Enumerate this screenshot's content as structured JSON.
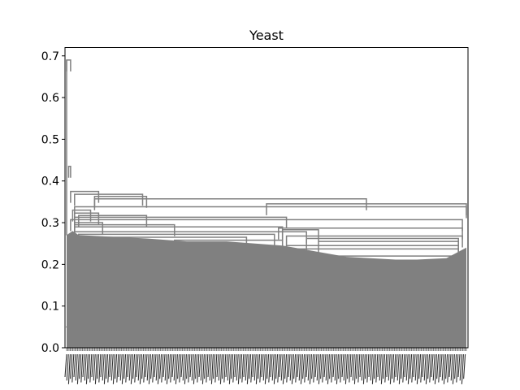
{
  "chart_data": {
    "type": "dendrogram",
    "title": "Yeast",
    "xlabel": "",
    "ylabel": "",
    "ylim": [
      0,
      0.72
    ],
    "yticks": [
      "0.0",
      "0.1",
      "0.2",
      "0.3",
      "0.4",
      "0.5",
      "0.6",
      "0.7"
    ],
    "leaf_labels_legible": false,
    "grid": false,
    "link_color": "#808080",
    "root_height": 0.69,
    "merges": [
      {
        "height": 0.69,
        "span": [
          0.0,
          0.01
        ]
      },
      {
        "height": 0.435,
        "span": [
          0.005,
          0.01
        ]
      },
      {
        "height": 0.375,
        "span": [
          0.01,
          0.08
        ]
      },
      {
        "height": 0.368,
        "span": [
          0.02,
          0.19
        ]
      },
      {
        "height": 0.363,
        "span": [
          0.07,
          0.2
        ]
      },
      {
        "height": 0.357,
        "span": [
          0.07,
          0.75
        ]
      },
      {
        "height": 0.345,
        "span": [
          0.5,
          1.0
        ]
      },
      {
        "height": 0.338,
        "span": [
          0.02,
          1.0
        ]
      },
      {
        "height": 0.33,
        "span": [
          0.015,
          0.06
        ]
      },
      {
        "height": 0.323,
        "span": [
          0.02,
          0.08
        ]
      },
      {
        "height": 0.317,
        "span": [
          0.03,
          0.2
        ]
      },
      {
        "height": 0.313,
        "span": [
          0.02,
          0.55
        ]
      },
      {
        "height": 0.307,
        "span": [
          0.01,
          0.99
        ]
      },
      {
        "height": 0.3,
        "span": [
          0.02,
          0.09
        ]
      },
      {
        "height": 0.295,
        "span": [
          0.02,
          0.27
        ]
      },
      {
        "height": 0.29,
        "span": [
          0.02,
          0.54
        ]
      },
      {
        "height": 0.287,
        "span": [
          0.53,
          0.99
        ]
      },
      {
        "height": 0.283,
        "span": [
          0.54,
          0.63
        ]
      },
      {
        "height": 0.278,
        "span": [
          0.02,
          0.6
        ]
      },
      {
        "height": 0.272,
        "span": [
          0.03,
          0.52
        ]
      },
      {
        "height": 0.268,
        "span": [
          0.55,
          0.99
        ]
      },
      {
        "height": 0.265,
        "span": [
          0.02,
          0.45
        ]
      },
      {
        "height": 0.262,
        "span": [
          0.6,
          0.98
        ]
      },
      {
        "height": 0.258,
        "span": [
          0.27,
          0.54
        ]
      },
      {
        "height": 0.255,
        "span": [
          0.63,
          0.98
        ]
      },
      {
        "height": 0.245,
        "span": [
          0.55,
          0.98
        ]
      },
      {
        "height": 0.237,
        "span": [
          0.55,
          0.98
        ]
      },
      {
        "height": 0.22,
        "span": [
          0.66,
          0.97
        ]
      },
      {
        "height": 0.21,
        "span": [
          0.75,
          0.96
        ]
      }
    ]
  }
}
